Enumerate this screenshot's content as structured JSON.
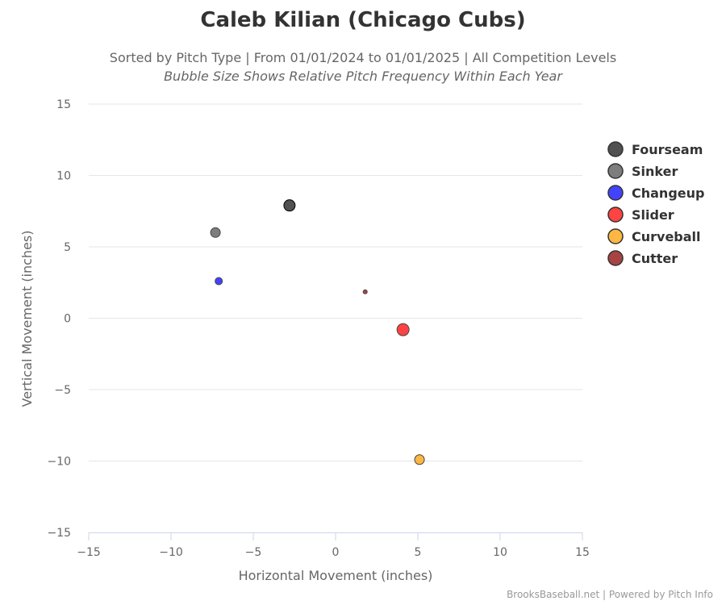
{
  "chart_data": {
    "type": "scatter",
    "title": "Caleb Kilian (Chicago Cubs)",
    "subtitle": "Sorted by Pitch Type | From 01/01/2024 to 01/01/2025 | All Competition Levels",
    "subtitle2": "Bubble Size Shows Relative Pitch Frequency Within Each Year",
    "xlabel": "Horizontal Movement (inches)",
    "ylabel": "Vertical Movement (inches)",
    "xlim": [
      -15,
      15
    ],
    "ylim": [
      -15,
      15
    ],
    "xticks": [
      -15,
      -10,
      -5,
      0,
      5,
      10,
      15
    ],
    "yticks": [
      15,
      10,
      5,
      0,
      -5,
      -10,
      -15
    ],
    "xtick_labels": [
      "−15",
      "−10",
      "−5",
      "0",
      "5",
      "10",
      "15"
    ],
    "ytick_labels": [
      "15",
      "10",
      "5",
      "0",
      "−5",
      "−10",
      "−15"
    ],
    "grid": "horizontal",
    "legend_position": "right",
    "series": [
      {
        "name": "Fourseam",
        "color": "#333333",
        "x": -2.8,
        "y": 7.9,
        "size": 7
      },
      {
        "name": "Sinker",
        "color": "#666666",
        "x": -7.3,
        "y": 6.0,
        "size": 6
      },
      {
        "name": "Changeup",
        "color": "#2222ff",
        "x": -7.1,
        "y": 2.6,
        "size": 4.5
      },
      {
        "name": "Slider",
        "color": "#ff2222",
        "x": 4.1,
        "y": -0.8,
        "size": 7.5
      },
      {
        "name": "Curveball",
        "color": "#ffaa22",
        "x": 5.1,
        "y": -9.9,
        "size": 6
      },
      {
        "name": "Cutter",
        "color": "#992222",
        "x": 1.8,
        "y": 1.85,
        "size": 2.5
      }
    ]
  },
  "credit": "BrooksBaseball.net | Powered by Pitch Info"
}
